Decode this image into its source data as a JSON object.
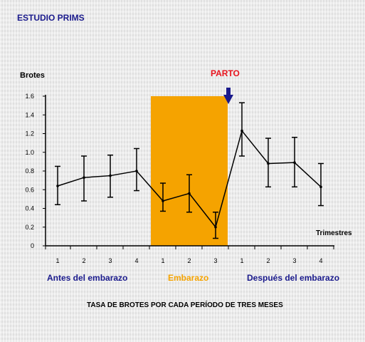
{
  "header": {
    "title": "ESTUDIO PRIMS"
  },
  "caption": "TASA DE BROTES POR CADA PERÍODO DE TRES MESES",
  "colors": {
    "title": "#1a1a8c",
    "parto": "#e8141e",
    "pregnancy_band": "#f5a300",
    "pregnancy_label": "#f5a300",
    "group_label": "#1a1a8c",
    "arrow": "#1a1a8c"
  },
  "chart_data": {
    "type": "line",
    "title": "",
    "ylabel": "Brotes",
    "xlabel": "Trimestres",
    "ylim": [
      0,
      1.6
    ],
    "yticks": [
      "0",
      "0.2",
      "0.4",
      "0.6",
      "0.8",
      "1.0",
      "1.2",
      "1.4",
      "1.6"
    ],
    "categories": [
      "1",
      "2",
      "3",
      "4",
      "1",
      "2",
      "3",
      "1",
      "2",
      "3",
      "4"
    ],
    "groups": [
      {
        "label": "Antes del embarazo",
        "start": 0,
        "end": 3
      },
      {
        "label": "Embarazo",
        "start": 4,
        "end": 6
      },
      {
        "label": "Después del embarazo",
        "start": 7,
        "end": 10
      }
    ],
    "series": [
      {
        "values": [
          0.64,
          0.73,
          0.75,
          0.8,
          0.48,
          0.56,
          0.2,
          1.23,
          0.88,
          0.89,
          0.63
        ],
        "error_low": [
          0.44,
          0.48,
          0.52,
          0.59,
          0.37,
          0.36,
          0.08,
          0.96,
          0.63,
          0.63,
          0.43
        ],
        "error_high": [
          0.85,
          0.96,
          0.97,
          1.04,
          0.67,
          0.76,
          0.36,
          1.53,
          1.15,
          1.16,
          0.88
        ]
      }
    ],
    "annotations": [
      {
        "text": "PARTO",
        "marker": "down-arrow",
        "at": "end of Embarazo"
      }
    ],
    "grid": false
  }
}
